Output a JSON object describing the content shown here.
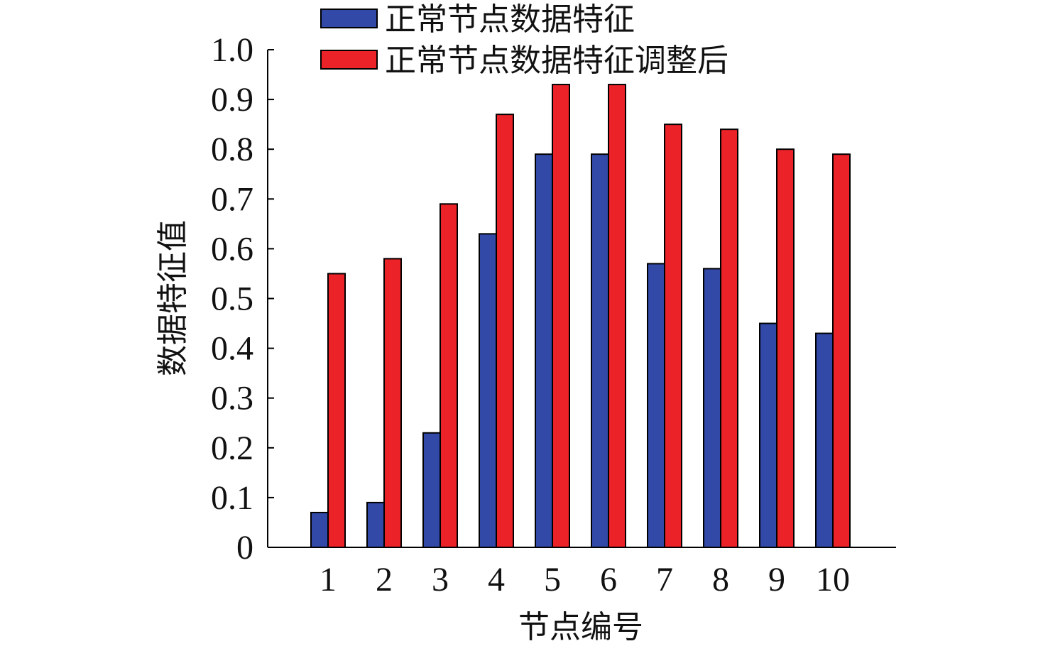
{
  "chart_data": {
    "type": "bar",
    "ylabel": "数据特征值",
    "xlabel": "节点编号",
    "categories": [
      "1",
      "2",
      "3",
      "4",
      "5",
      "6",
      "7",
      "8",
      "9",
      "10"
    ],
    "series": [
      {
        "name": "正常节点数据特征",
        "color": "#3249a8",
        "values": [
          0.07,
          0.09,
          0.23,
          0.63,
          0.79,
          0.79,
          0.57,
          0.56,
          0.45,
          0.43
        ]
      },
      {
        "name": "正常节点数据特征调整后",
        "color": "#eb2228",
        "values": [
          0.55,
          0.58,
          0.69,
          0.87,
          0.93,
          0.93,
          0.85,
          0.84,
          0.8,
          0.79
        ]
      }
    ],
    "ylim": [
      0,
      1.0
    ],
    "yticks": [
      "0",
      "0.1",
      "0.2",
      "0.3",
      "0.4",
      "0.5",
      "0.6",
      "0.7",
      "0.8",
      "0.9",
      "1.0"
    ],
    "grid": false,
    "legend_position": "top"
  }
}
